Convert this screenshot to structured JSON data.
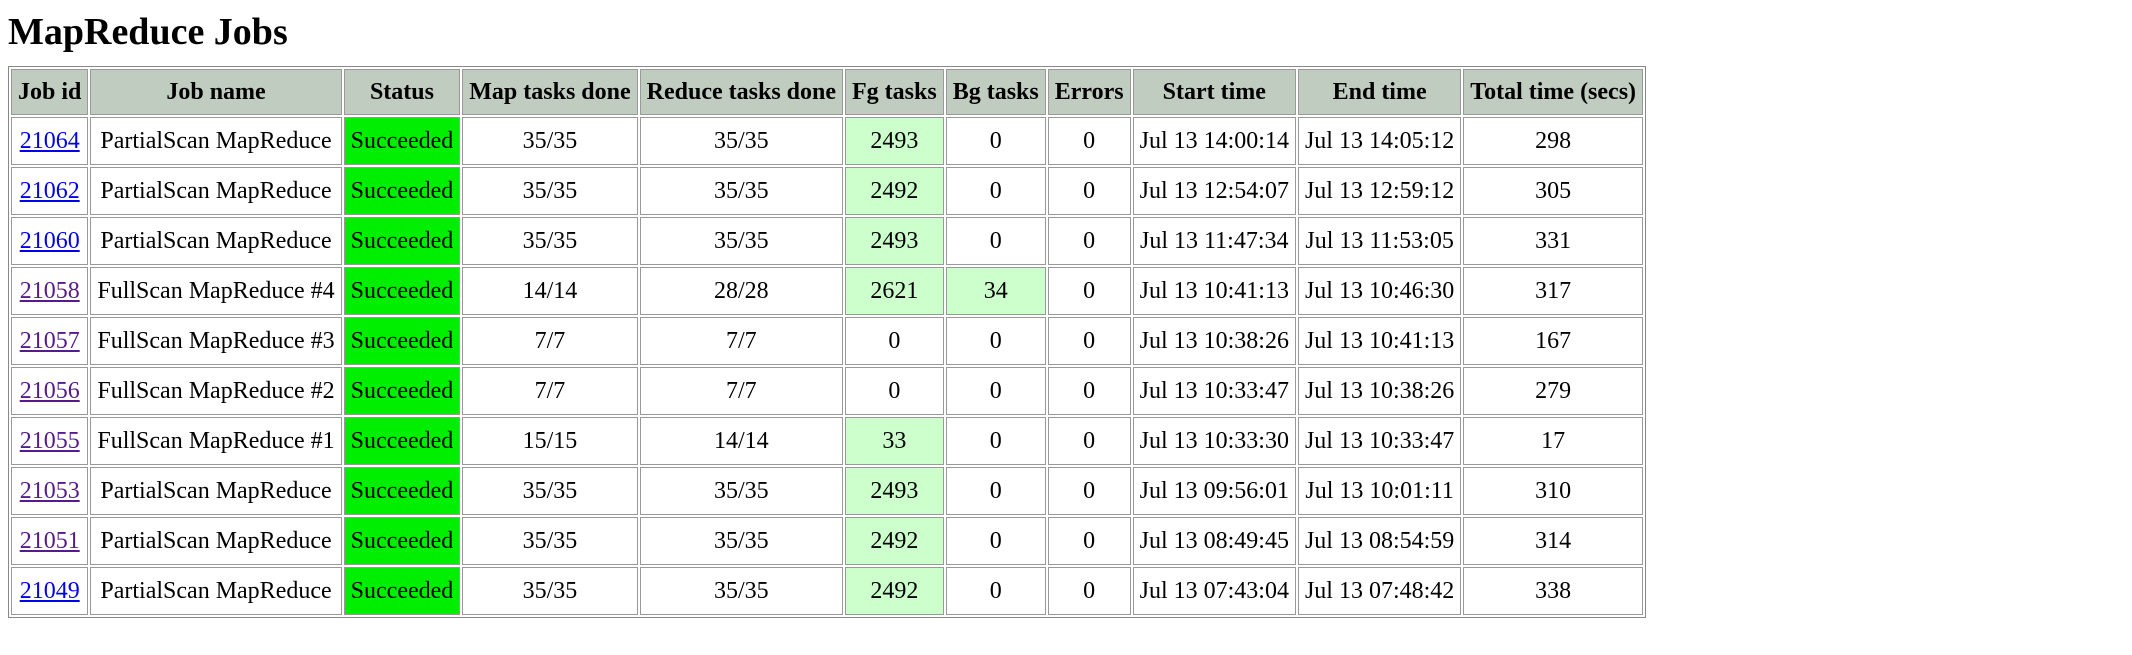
{
  "page": {
    "title": "MapReduce Jobs"
  },
  "table": {
    "headers": {
      "job_id": "Job id",
      "job_name": "Job name",
      "status": "Status",
      "map_done": "Map tasks done",
      "reduce_done": "Reduce tasks done",
      "fg_tasks": "Fg tasks",
      "bg_tasks": "Bg tasks",
      "errors": "Errors",
      "start_time": "Start time",
      "end_time": "End time",
      "total_time": "Total time (secs)"
    },
    "rows": [
      {
        "id": "21064",
        "name": "PartialScan MapReduce",
        "status": "Succeeded",
        "map": "35/35",
        "reduce": "35/35",
        "fg": "2493",
        "bg": "0",
        "errors": "0",
        "start": "Jul 13 14:00:14",
        "end": "Jul 13 14:05:12",
        "total": "298"
      },
      {
        "id": "21062",
        "name": "PartialScan MapReduce",
        "status": "Succeeded",
        "map": "35/35",
        "reduce": "35/35",
        "fg": "2492",
        "bg": "0",
        "errors": "0",
        "start": "Jul 13 12:54:07",
        "end": "Jul 13 12:59:12",
        "total": "305"
      },
      {
        "id": "21060",
        "name": "PartialScan MapReduce",
        "status": "Succeeded",
        "map": "35/35",
        "reduce": "35/35",
        "fg": "2493",
        "bg": "0",
        "errors": "0",
        "start": "Jul 13 11:47:34",
        "end": "Jul 13 11:53:05",
        "total": "331"
      },
      {
        "id": "21058",
        "name": "FullScan MapReduce #4",
        "status": "Succeeded",
        "map": "14/14",
        "reduce": "28/28",
        "fg": "2621",
        "bg": "34",
        "errors": "0",
        "start": "Jul 13 10:41:13",
        "end": "Jul 13 10:46:30",
        "total": "317"
      },
      {
        "id": "21057",
        "name": "FullScan MapReduce #3",
        "status": "Succeeded",
        "map": "7/7",
        "reduce": "7/7",
        "fg": "0",
        "bg": "0",
        "errors": "0",
        "start": "Jul 13 10:38:26",
        "end": "Jul 13 10:41:13",
        "total": "167"
      },
      {
        "id": "21056",
        "name": "FullScan MapReduce #2",
        "status": "Succeeded",
        "map": "7/7",
        "reduce": "7/7",
        "fg": "0",
        "bg": "0",
        "errors": "0",
        "start": "Jul 13 10:33:47",
        "end": "Jul 13 10:38:26",
        "total": "279"
      },
      {
        "id": "21055",
        "name": "FullScan MapReduce #1",
        "status": "Succeeded",
        "map": "15/15",
        "reduce": "14/14",
        "fg": "33",
        "bg": "0",
        "errors": "0",
        "start": "Jul 13 10:33:30",
        "end": "Jul 13 10:33:47",
        "total": "17"
      },
      {
        "id": "21053",
        "name": "PartialScan MapReduce",
        "status": "Succeeded",
        "map": "35/35",
        "reduce": "35/35",
        "fg": "2493",
        "bg": "0",
        "errors": "0",
        "start": "Jul 13 09:56:01",
        "end": "Jul 13 10:01:11",
        "total": "310"
      },
      {
        "id": "21051",
        "name": "PartialScan MapReduce",
        "status": "Succeeded",
        "map": "35/35",
        "reduce": "35/35",
        "fg": "2492",
        "bg": "0",
        "errors": "0",
        "start": "Jul 13 08:49:45",
        "end": "Jul 13 08:54:59",
        "total": "314"
      },
      {
        "id": "21049",
        "name": "PartialScan MapReduce",
        "status": "Succeeded",
        "map": "35/35",
        "reduce": "35/35",
        "fg": "2492",
        "bg": "0",
        "errors": "0",
        "start": "Jul 13 07:43:04",
        "end": "Jul 13 07:48:42",
        "total": "338"
      }
    ]
  },
  "colors": {
    "header_bg": "#c0ccc0",
    "status_succeeded": "#00ee00",
    "nonzero_task_highlight": "#ccffcc",
    "link_visited": "#551a8b",
    "link_unvisited": "#0000ee"
  }
}
